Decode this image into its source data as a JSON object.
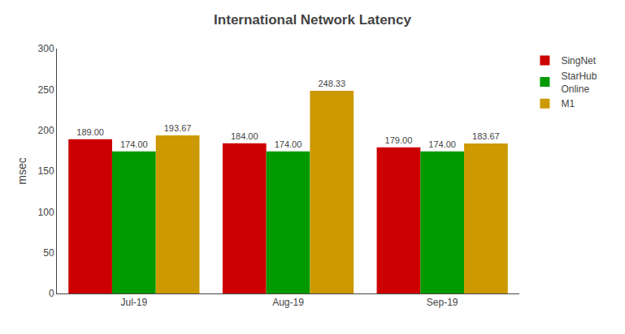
{
  "chart_data": {
    "type": "bar",
    "title": "International Network Latency",
    "ylabel": "msec",
    "categories": [
      "Jul-19",
      "Aug-19",
      "Sep-19"
    ],
    "series": [
      {
        "name": "SingNet",
        "color": "#CC0000",
        "values": [
          189.0,
          184.0,
          179.0
        ],
        "value_labels": [
          "189.00",
          "184.00",
          "179.00"
        ]
      },
      {
        "name": "StarHub\nOnline",
        "color": "#009900",
        "values": [
          174.0,
          174.0,
          174.0
        ],
        "value_labels": [
          "174.00",
          "174.00",
          "174.00"
        ]
      },
      {
        "name": "M1",
        "color": "#CC9900",
        "values": [
          193.67,
          248.33,
          183.67
        ],
        "value_labels": [
          "193.67",
          "248.33",
          "183.67"
        ]
      }
    ],
    "ylim": [
      0,
      300
    ],
    "yticks": [
      0,
      50,
      100,
      150,
      200,
      250,
      300
    ],
    "grid": false,
    "legend": "upper right",
    "data_labels": true
  }
}
